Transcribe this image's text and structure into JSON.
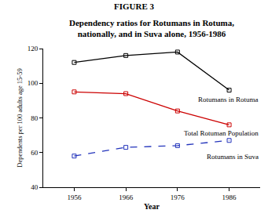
{
  "chart_data": {
    "type": "line",
    "title": "FIGURE 3",
    "subtitle": "Dependency ratios for Rotumans in Rotuma, nationally, and in Suva alone, 1956-1986",
    "x_label": "Year",
    "y_label": "Dependents per 100 adults age 15-59",
    "x": [
      1956,
      1966,
      1976,
      1986
    ],
    "series": [
      {
        "name": "Rotumans in Rotuma",
        "color": "#000000",
        "values": [
          112,
          116,
          118,
          96
        ],
        "marker": "square",
        "line_style": "solid"
      },
      {
        "name": "Total Rotuman Population",
        "color": "#cc0000",
        "values": [
          95,
          94,
          84,
          76
        ],
        "marker": "square",
        "line_style": "solid"
      },
      {
        "name": "Rotumans in Suva",
        "color": "#2233bb",
        "values": [
          58,
          63,
          64,
          67
        ],
        "marker": "square",
        "line_style": "dash"
      }
    ],
    "xlim": [
      1950,
      1992
    ],
    "xticks": [
      1956,
      1966,
      1976,
      1986
    ],
    "ylim": [
      40,
      120
    ],
    "yticks": [
      40,
      60,
      80,
      100,
      120
    ],
    "grid": false
  }
}
